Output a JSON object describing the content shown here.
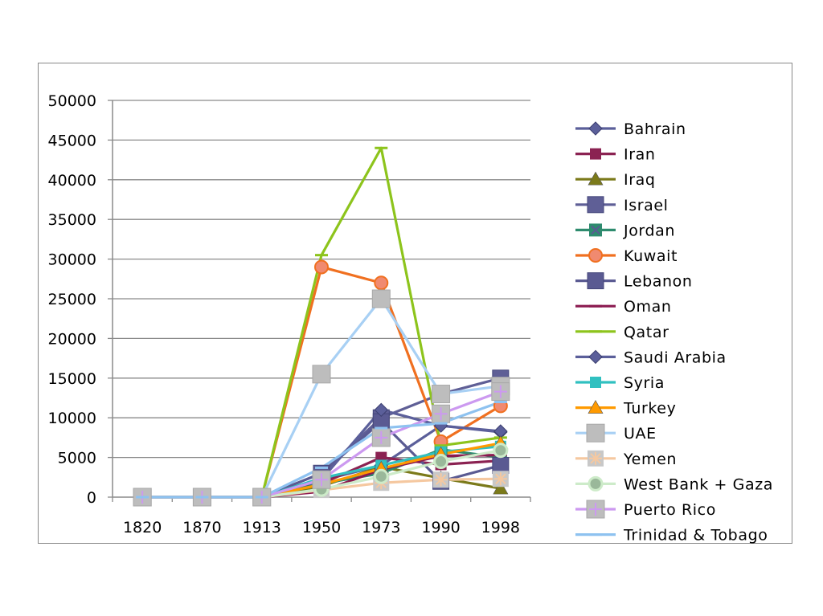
{
  "chart_data": {
    "type": "line",
    "categories": [
      "1820",
      "1870",
      "1913",
      "1950",
      "1973",
      "1990",
      "1998"
    ],
    "ylim": [
      0,
      50000
    ],
    "yticks": [
      "0",
      "5000",
      "10000",
      "15000",
      "20000",
      "25000",
      "30000",
      "35000",
      "40000",
      "45000",
      "50000"
    ],
    "grid": true,
    "legend_position": "right",
    "series": [
      {
        "name": "Bahrain",
        "values": [
          0,
          0,
          0,
          2100,
          4000,
          9000,
          8200
        ],
        "color": "#5b5f9a",
        "marker": "diamond"
      },
      {
        "name": "Iran",
        "values": [
          0,
          0,
          0,
          1700,
          5000,
          4100,
          4600
        ],
        "color": "#8b2252",
        "marker": "square"
      },
      {
        "name": "Iraq",
        "values": [
          0,
          0,
          0,
          1400,
          3800,
          2400,
          1100
        ],
        "color": "#7b7a1a",
        "marker": "triangle"
      },
      {
        "name": "Israel",
        "values": [
          0,
          0,
          0,
          3000,
          10000,
          13000,
          15000
        ],
        "color": "#5f5f96",
        "marker": "bigsquare"
      },
      {
        "name": "Jordan",
        "values": [
          0,
          0,
          0,
          1700,
          3000,
          6000,
          5000
        ],
        "color": "#2e8b6e",
        "marker": "squarex"
      },
      {
        "name": "Kuwait",
        "values": [
          0,
          0,
          0,
          29000,
          27000,
          7000,
          11500
        ],
        "color": "#f07020",
        "marker": "circle"
      },
      {
        "name": "Lebanon",
        "values": [
          0,
          0,
          0,
          3000,
          9500,
          2000,
          4000
        ],
        "color": "#5a5a92",
        "marker": "bigsquare"
      },
      {
        "name": "Oman",
        "values": [
          0,
          0,
          0,
          700,
          3500,
          5200,
          5300
        ],
        "color": "#8b1a50",
        "marker": "dash"
      },
      {
        "name": "Qatar",
        "values": [
          0,
          0,
          0,
          30500,
          44000,
          6500,
          7500
        ],
        "color": "#8dc41c",
        "marker": "dash"
      },
      {
        "name": "Saudi Arabia",
        "values": [
          0,
          0,
          0,
          2200,
          11000,
          9000,
          8300
        ],
        "color": "#5b5f9a",
        "marker": "diamond"
      },
      {
        "name": "Syria",
        "values": [
          0,
          0,
          0,
          2400,
          4000,
          5700,
          6400
        ],
        "color": "#30c0c0",
        "marker": "square"
      },
      {
        "name": "Turkey",
        "values": [
          0,
          0,
          0,
          1600,
          3600,
          5400,
          6800
        ],
        "color": "#ff9a00",
        "marker": "triangle"
      },
      {
        "name": "UAE",
        "values": [
          0,
          0,
          0,
          15500,
          25000,
          13000,
          14000
        ],
        "color": "#a8d0f4",
        "marker": "greysquare"
      },
      {
        "name": "Yemen",
        "values": [
          0,
          0,
          0,
          900,
          1800,
          2200,
          2300
        ],
        "color": "#f5c8a0",
        "marker": "asterisk"
      },
      {
        "name": "West Bank + Gaza",
        "values": [
          0,
          0,
          0,
          1000,
          2600,
          4500,
          5900
        ],
        "color": "#cdebc9",
        "marker": "greycircle"
      },
      {
        "name": "Puerto Rico",
        "values": [
          0,
          0,
          0,
          2200,
          7500,
          10500,
          13300
        ],
        "color": "#cc99f0",
        "marker": "greyplus"
      },
      {
        "name": "Trinidad & Tobago",
        "values": [
          0,
          0,
          0,
          3700,
          8700,
          9300,
          12000
        ],
        "color": "#8ec2f0",
        "marker": "dash"
      }
    ]
  }
}
